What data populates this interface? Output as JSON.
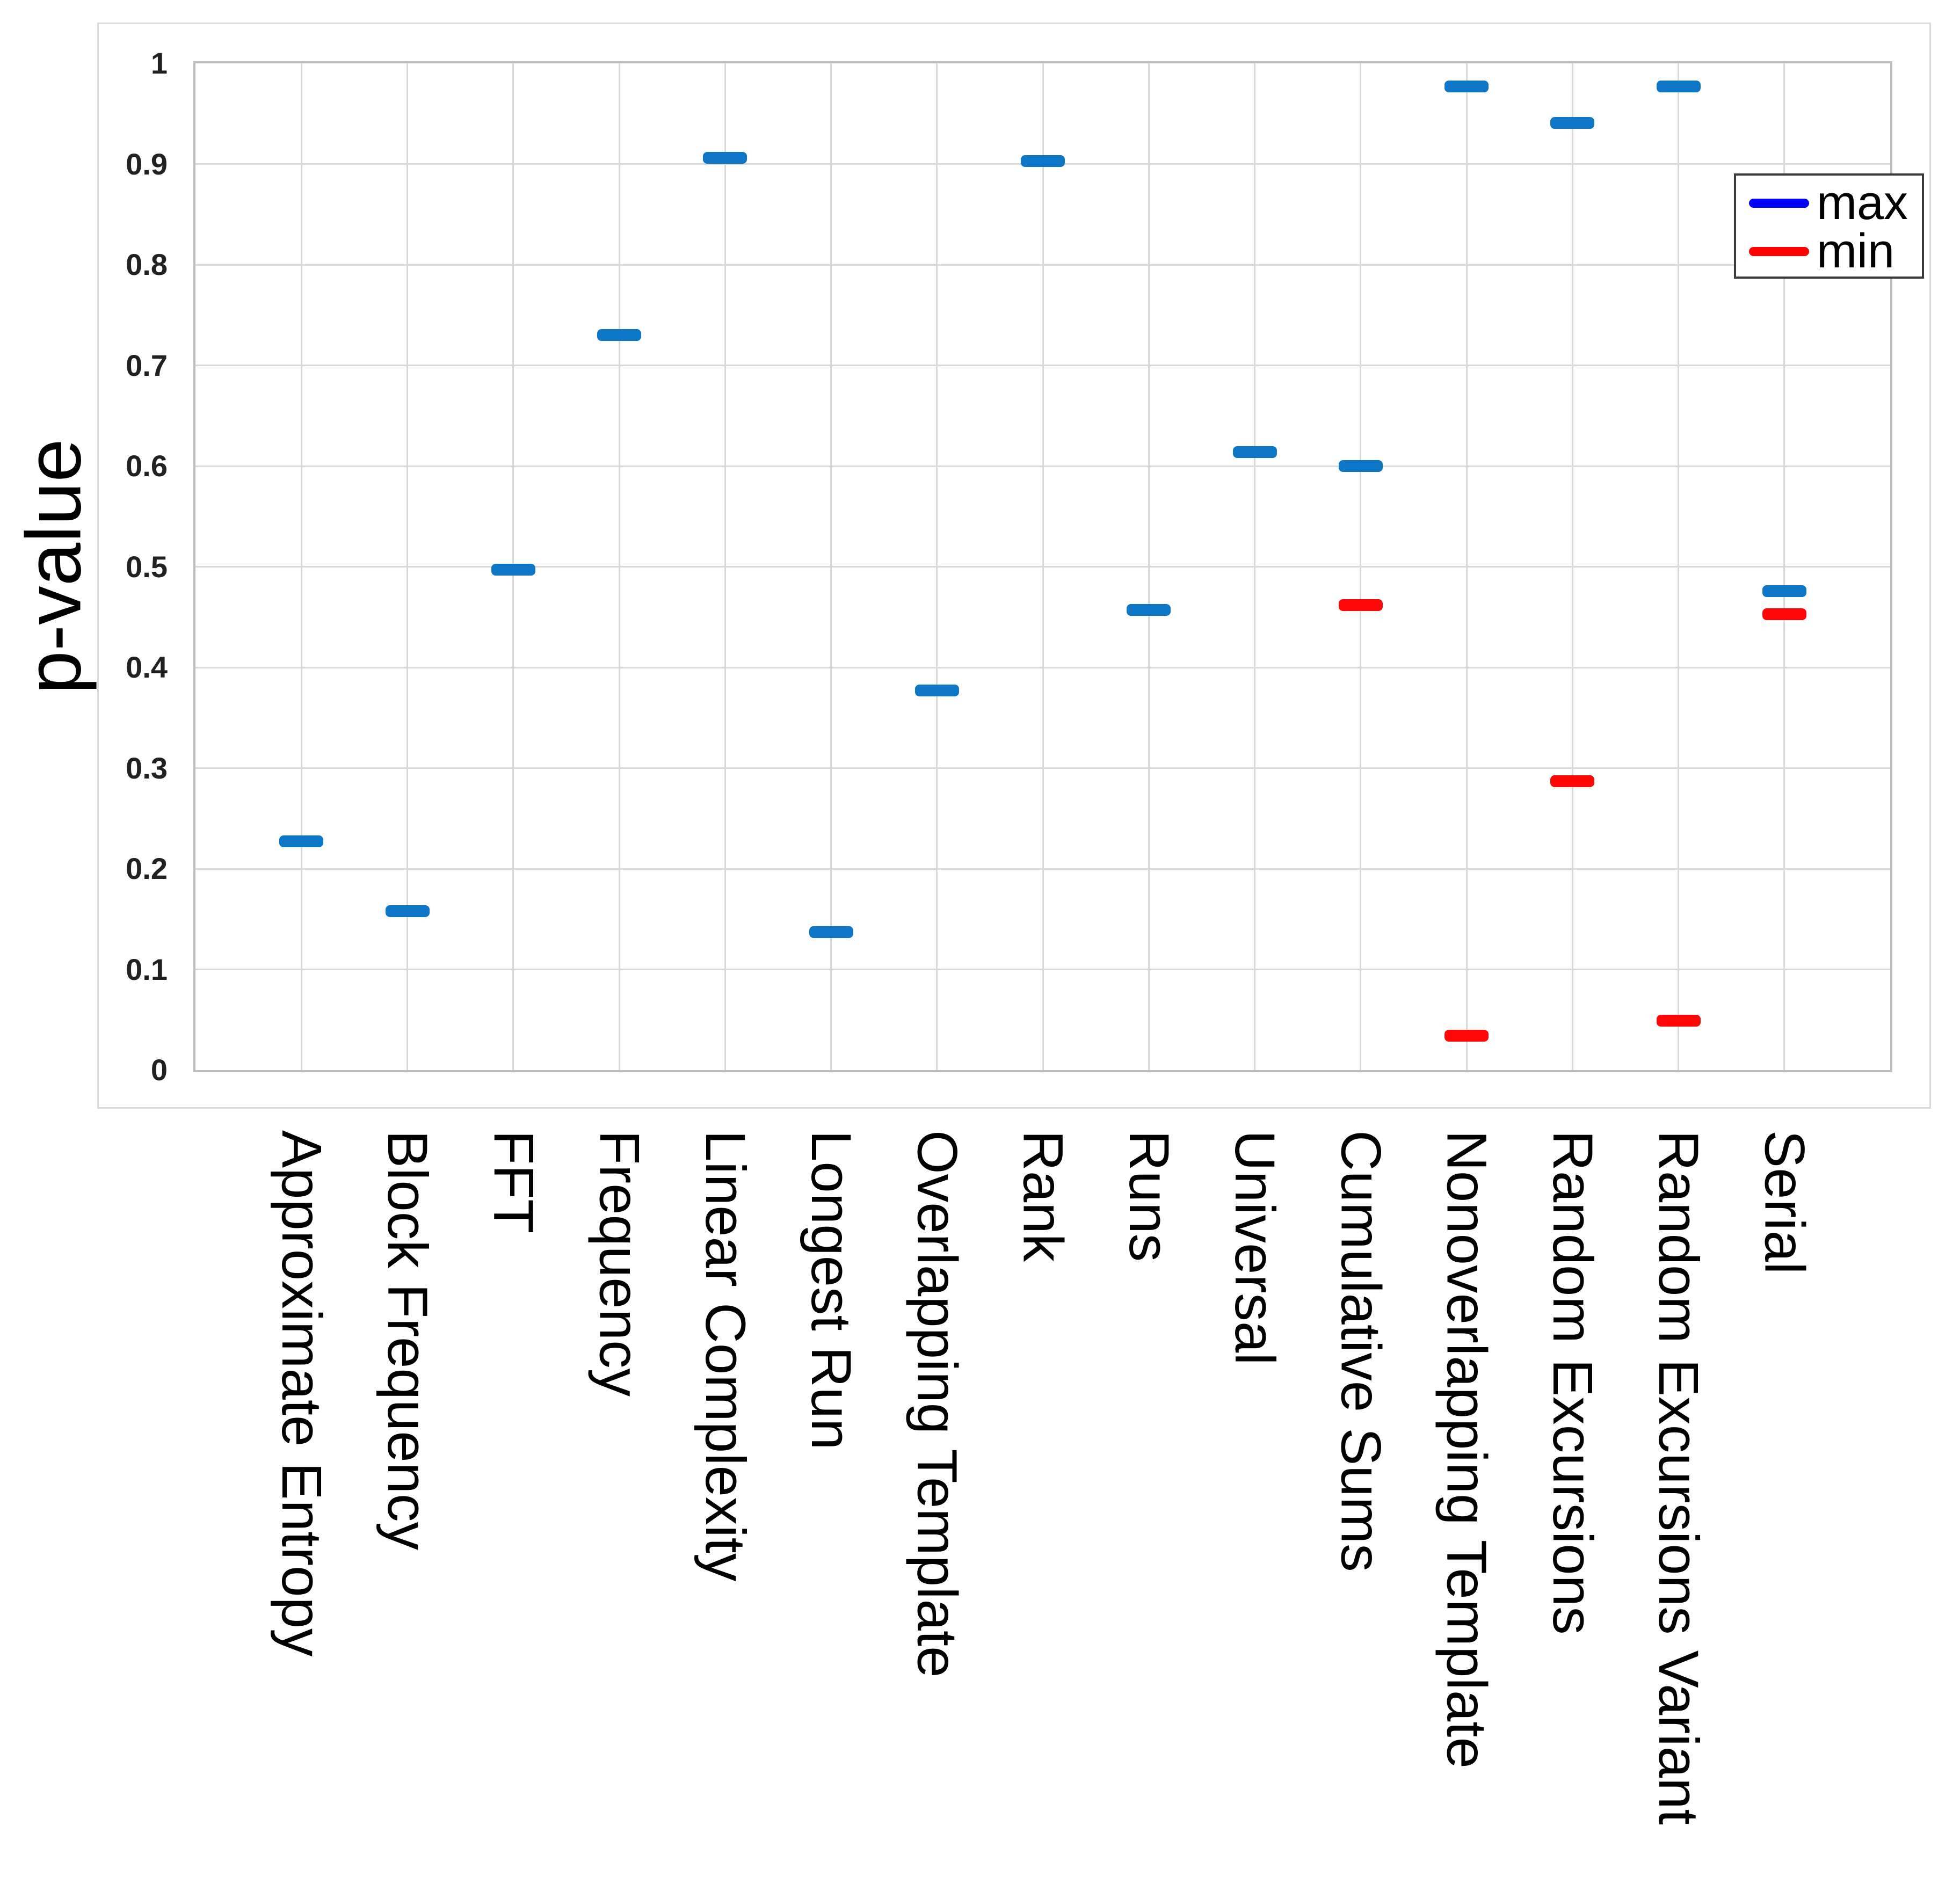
{
  "chart_data": {
    "type": "scatter",
    "title": "",
    "xlabel": "",
    "ylabel": "p-value",
    "ylim": [
      0,
      1
    ],
    "grid": "on",
    "legend_position": "upper right",
    "marker_style": "horizontal-dash",
    "ytick_values": [
      0,
      0.1,
      0.2,
      0.3,
      0.4,
      0.5,
      0.6,
      0.7,
      0.8,
      0.9,
      1
    ],
    "ytick_labels": [
      "0",
      "0.1",
      "0.2",
      "0.3",
      "0.4",
      "0.5",
      "0.6",
      "0.7",
      "0.8",
      "0.9",
      "1"
    ],
    "categories": [
      "Approximate Entropy",
      "Block Frequency",
      "FFT",
      "Frequency",
      "Linear Complexity",
      "Longest Run",
      "Overlapping Template",
      "Rank",
      "Runs",
      "Universal",
      "Cumulative Sums",
      "Nonoverlapping Template",
      "Random Excursions",
      "Random Excursions Variant",
      "Serial"
    ],
    "series": [
      {
        "name": "max",
        "marker_color": "#0e76c6",
        "legend_color": "#0000ff",
        "values": [
          0.227,
          0.158,
          0.497,
          0.73,
          0.906,
          0.137,
          0.377,
          0.903,
          0.457,
          0.614,
          0.6,
          0.977,
          0.941,
          0.977,
          0.476
        ]
      },
      {
        "name": "min",
        "marker_color": "#ff0707",
        "legend_color": "#ff0000",
        "values": [
          null,
          null,
          null,
          null,
          null,
          null,
          null,
          null,
          null,
          null,
          0.462,
          0.034,
          0.287,
          0.049,
          0.453
        ]
      }
    ]
  }
}
